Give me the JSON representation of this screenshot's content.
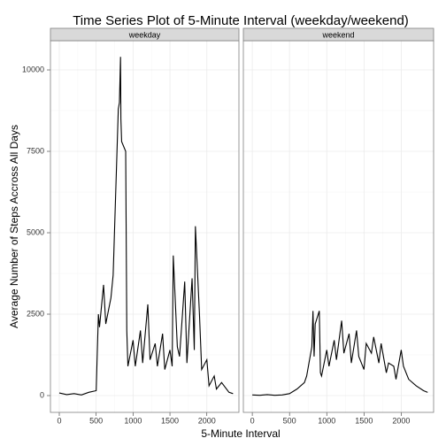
{
  "chart_data": {
    "type": "line",
    "title": "Time Series Plot of 5-Minute Interval (weekday/weekend)",
    "x_label": "5-Minute Interval",
    "y_label": "Average Number of Steps Accross All Days",
    "xlim": [
      -120,
      2435
    ],
    "xticks": [
      0,
      500,
      1000,
      1500,
      2000
    ],
    "ylim": [
      -516,
      10897
    ],
    "yticks": [
      0,
      2500,
      5000,
      7500,
      10000
    ],
    "grid": true,
    "series": [
      {
        "name": "weekday",
        "color": "#000000",
        "x": [
          0,
          100,
          200,
          300,
          400,
          500,
          530,
          545,
          600,
          630,
          700,
          730,
          800,
          815,
          830,
          835,
          845,
          900,
          915,
          930,
          1000,
          1030,
          1100,
          1130,
          1200,
          1230,
          1300,
          1330,
          1400,
          1430,
          1500,
          1530,
          1545,
          1600,
          1630,
          1700,
          1730,
          1800,
          1830,
          1845,
          1900,
          1930,
          2000,
          2030,
          2100,
          2130,
          2200,
          2300,
          2355
        ],
        "values": [
          80,
          30,
          60,
          20,
          100,
          150,
          2500,
          2100,
          3400,
          2200,
          3000,
          3700,
          8800,
          9000,
          10400,
          8500,
          7800,
          7500,
          2000,
          900,
          1700,
          900,
          2000,
          1000,
          2800,
          1100,
          1600,
          900,
          1900,
          800,
          1400,
          900,
          4300,
          1500,
          1200,
          3500,
          1000,
          3600,
          1400,
          5200,
          2500,
          800,
          1100,
          300,
          600,
          200,
          400,
          100,
          60
        ]
      },
      {
        "name": "weekend",
        "color": "#000000",
        "x": [
          0,
          100,
          200,
          300,
          400,
          500,
          600,
          700,
          730,
          800,
          815,
          830,
          845,
          900,
          915,
          930,
          1000,
          1030,
          1100,
          1130,
          1200,
          1230,
          1300,
          1330,
          1400,
          1430,
          1500,
          1530,
          1600,
          1630,
          1700,
          1730,
          1800,
          1830,
          1900,
          1930,
          2000,
          2030,
          2100,
          2200,
          2300,
          2355
        ],
        "values": [
          20,
          10,
          30,
          10,
          20,
          60,
          200,
          400,
          600,
          1500,
          2600,
          1200,
          2200,
          2600,
          700,
          600,
          1400,
          900,
          1700,
          1100,
          2300,
          1300,
          1900,
          1000,
          2000,
          1200,
          800,
          1600,
          1300,
          1800,
          1000,
          1600,
          700,
          1000,
          900,
          500,
          1400,
          900,
          500,
          300,
          150,
          100
        ]
      }
    ]
  }
}
